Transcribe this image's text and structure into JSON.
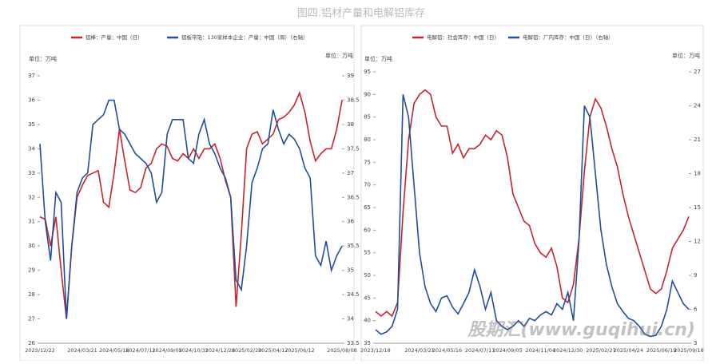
{
  "title": "图四.铝材产量和电解铝库存",
  "watermark": "股期汇(www.guqihui.cn)",
  "chart_data": [
    {
      "type": "line",
      "y_label": "单位：万吨",
      "y2_label": "单位：万吨",
      "categories": [
        "2023/12/22",
        null,
        null,
        null,
        null,
        null,
        null,
        null,
        "2024/03/21",
        null,
        null,
        null,
        null,
        null,
        "2024/05/16",
        null,
        null,
        null,
        null,
        "2024/07/11",
        null,
        null,
        null,
        null,
        "2024/09/05",
        null,
        null,
        null,
        null,
        "2024/10/31",
        null,
        null,
        null,
        null,
        "2024/12/26",
        null,
        null,
        null,
        null,
        "2025/02/20",
        null,
        null,
        null,
        null,
        "2025/04/17",
        null,
        null,
        null,
        null,
        "2025/06/12",
        null,
        null,
        null,
        null,
        null,
        null,
        null,
        "2025/08/08"
      ],
      "ylim": [
        26,
        37
      ],
      "yticks": [
        26,
        27,
        28,
        29,
        30,
        31,
        32,
        33,
        34,
        35,
        36,
        37
      ],
      "y2lim": [
        33.5,
        39
      ],
      "y2ticks": [
        33.5,
        34,
        34.5,
        35,
        35.5,
        36,
        36.5,
        37,
        37.5,
        38,
        38.5,
        39
      ],
      "series": [
        {
          "name": "铝棒：产量：中国（日）",
          "color": "#c8232c",
          "values": [
            31.2,
            31.1,
            30.0,
            31.2,
            29.0,
            27.0,
            30.0,
            32.0,
            32.5,
            32.9,
            33.0,
            33.1,
            31.8,
            31.6,
            33.0,
            34.8,
            33.5,
            32.3,
            32.2,
            32.4,
            33.2,
            33.4,
            34.0,
            34.2,
            34.1,
            33.6,
            33.5,
            33.8,
            33.6,
            34.0,
            33.6,
            34.0,
            34.0,
            34.2,
            33.6,
            32.7,
            32.0,
            27.5,
            30.5,
            34.0,
            34.6,
            34.7,
            34.2,
            34.4,
            34.6,
            35.2,
            35.3,
            35.5,
            35.8,
            36.3,
            35.5,
            34.3,
            33.5,
            33.8,
            34.0,
            34.0,
            34.8,
            36.0
          ]
        },
        {
          "name": "铝板带箔：130家样本企业：产量：中国（周）（右轴）",
          "color": "#1f4e9c",
          "axis": "y2",
          "values": [
            37.6,
            36.0,
            35.2,
            36.6,
            36.4,
            34.0,
            35.5,
            36.6,
            36.9,
            37.0,
            38.0,
            38.1,
            38.2,
            38.5,
            38.5,
            37.9,
            37.8,
            37.6,
            37.4,
            37.3,
            37.2,
            37.0,
            36.4,
            36.6,
            37.8,
            38.1,
            38.1,
            38.1,
            37.3,
            37.2,
            37.8,
            38.1,
            37.6,
            37.4,
            37.1,
            36.9,
            36.5,
            34.8,
            34.6,
            35.5,
            36.8,
            37.1,
            37.5,
            37.6,
            38.3,
            37.9,
            37.6,
            37.8,
            37.7,
            37.5,
            37.1,
            36.9,
            35.3,
            35.1,
            35.6,
            35.0,
            35.3,
            35.5
          ]
        }
      ]
    },
    {
      "type": "line",
      "y_label": "单位：万吨",
      "y2_label": "单位：万吨",
      "categories": [
        "2023/12/18",
        null,
        null,
        null,
        null,
        null,
        null,
        null,
        "2024/03/21",
        null,
        null,
        null,
        null,
        "2024/05/16",
        null,
        null,
        null,
        null,
        null,
        "2024/07/11",
        null,
        null,
        null,
        null,
        "2024/09/05",
        null,
        null,
        null,
        null,
        null,
        "2024/11/04",
        null,
        null,
        null,
        null,
        "2024/12/30",
        null,
        null,
        null,
        null,
        null,
        "2025/02/27",
        null,
        null,
        null,
        null,
        "2025/04/24",
        null,
        null,
        null,
        null,
        null,
        "2025/06/19",
        null,
        null,
        null,
        null,
        "2025/09/18"
      ],
      "ylim": [
        35,
        95
      ],
      "yticks": [
        35,
        40,
        45,
        50,
        55,
        60,
        65,
        70,
        75,
        80,
        85,
        90,
        95
      ],
      "y2lim": [
        3,
        27
      ],
      "y2ticks": [
        3,
        6,
        9,
        12,
        15,
        18,
        21,
        24,
        27
      ],
      "series": [
        {
          "name": "电解铝：社会库存：中国（日）",
          "color": "#c8232c",
          "values": [
            42,
            41,
            42,
            41,
            44,
            64,
            80,
            88,
            90,
            91,
            90,
            85,
            83,
            83,
            77,
            79,
            76,
            78,
            78,
            79,
            81,
            80,
            82,
            81,
            76,
            68,
            65,
            62,
            61,
            57,
            55,
            54,
            56,
            52,
            45,
            44,
            48,
            58,
            73,
            85,
            89,
            87,
            83,
            78,
            74,
            68,
            63,
            59,
            55,
            51,
            47,
            46,
            47,
            51,
            56,
            58,
            60,
            63
          ]
        },
        {
          "name": "电解铝：厂内库存：中国（日）（右轴）",
          "color": "#1f4e9c",
          "axis": "y2",
          "values": [
            4.2,
            3.8,
            4.0,
            4.5,
            6,
            25,
            23,
            17,
            11,
            8,
            6.5,
            5.8,
            7,
            7.2,
            6.2,
            5.6,
            6.5,
            7.5,
            9.5,
            8,
            6,
            7.5,
            5,
            4.5,
            4.2,
            4.5,
            5,
            4.5,
            5.2,
            5,
            5.5,
            5.8,
            5.5,
            6.5,
            6,
            7.5,
            5,
            12,
            24,
            23,
            18,
            13,
            10,
            8,
            6.5,
            5.8,
            5.2,
            5,
            4.5,
            3.8,
            3.6,
            3.7,
            4.5,
            6,
            8.5,
            7.5,
            6.5,
            6
          ]
        }
      ]
    }
  ]
}
